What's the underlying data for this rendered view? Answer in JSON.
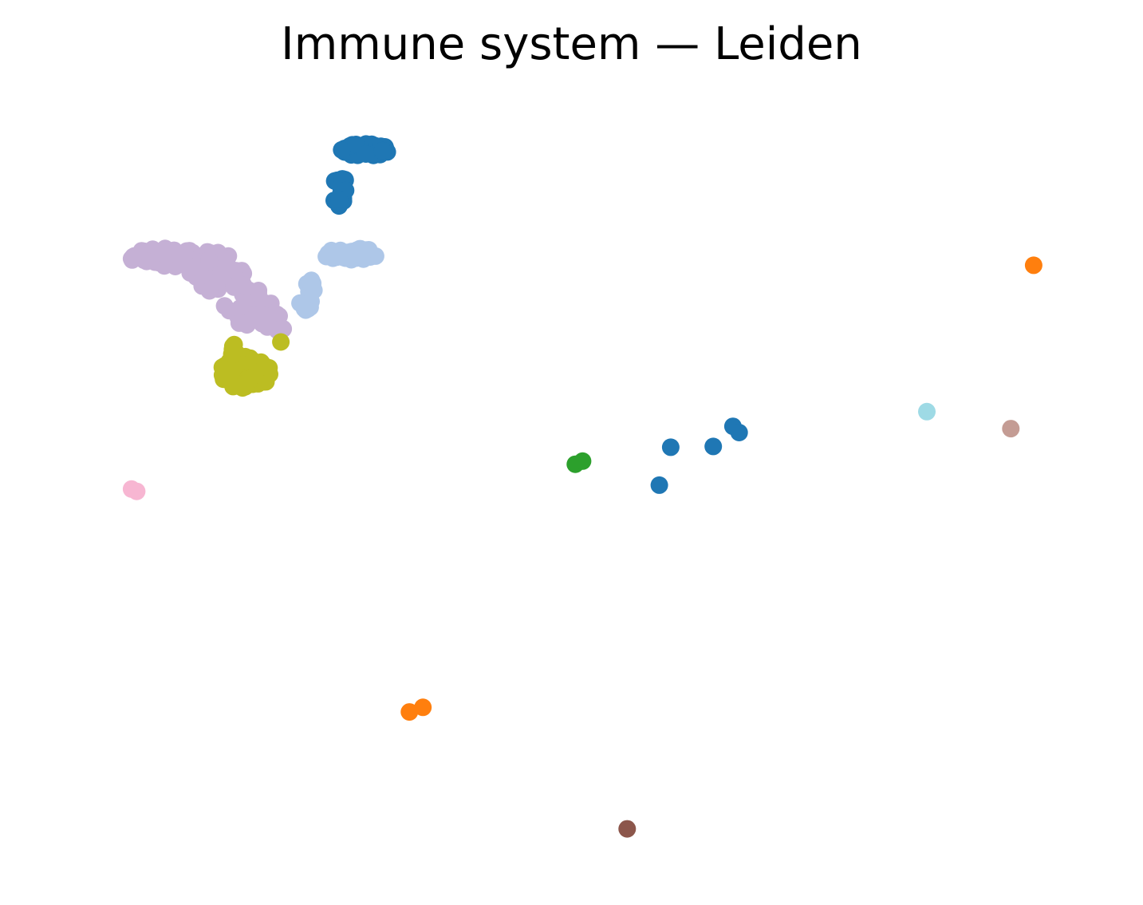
{
  "chart_data": {
    "type": "scatter",
    "title": "Immune system — Leiden",
    "xlabel": "",
    "ylabel": "",
    "axes_visible": false,
    "grid": false,
    "legend": "none",
    "xlim": [
      0,
      100
    ],
    "ylim": [
      0,
      100
    ],
    "point_radius": 11,
    "series": [
      {
        "color": "#c5b0d5",
        "clusters": [
          {
            "cx": 11.5,
            "cy": 79.1,
            "rx": 5.2,
            "ry": 1.2,
            "n": 55,
            "seed": 11
          },
          {
            "cx": 15.5,
            "cy": 77.2,
            "rx": 2.8,
            "ry": 2.6,
            "n": 45,
            "seed": 12
          },
          {
            "cx": 18.5,
            "cy": 73.0,
            "rx": 2.4,
            "ry": 2.8,
            "n": 35,
            "seed": 13
          },
          {
            "cx": 21.0,
            "cy": 70.9,
            "rx": 1.6,
            "ry": 1.4,
            "n": 18,
            "seed": 14
          }
        ]
      },
      {
        "color": "#aec7e8",
        "clusters": [
          {
            "cx": 28.5,
            "cy": 79.5,
            "rx": 2.6,
            "ry": 0.9,
            "n": 35,
            "seed": 21
          },
          {
            "cx": 24.2,
            "cy": 74.5,
            "rx": 0.8,
            "ry": 2.3,
            "n": 14,
            "seed": 22
          }
        ]
      },
      {
        "color": "#1f77b4",
        "clusters": [
          {
            "cx": 29.8,
            "cy": 93.0,
            "rx": 2.3,
            "ry": 0.8,
            "n": 45,
            "seed": 31
          },
          {
            "cx": 27.4,
            "cy": 87.6,
            "rx": 0.8,
            "ry": 2.0,
            "n": 20,
            "seed": 32
          }
        ],
        "points": [
          [
            63.4,
            54.7
          ],
          [
            59.3,
            54.6
          ],
          [
            65.3,
            57.3
          ],
          [
            65.9,
            56.5
          ],
          [
            58.2,
            49.7
          ]
        ]
      },
      {
        "color": "#bcbd22",
        "clusters": [
          {
            "cx": 18.3,
            "cy": 64.2,
            "rx": 2.4,
            "ry": 2.1,
            "n": 90,
            "seed": 41
          },
          {
            "cx": 17.2,
            "cy": 67.5,
            "rx": 0.4,
            "ry": 1.2,
            "n": 8,
            "seed": 42
          }
        ],
        "points": [
          [
            21.7,
            68.2
          ]
        ]
      },
      {
        "color": "#ff7f0e",
        "points": [
          [
            94.3,
            78.1
          ],
          [
            34.1,
            20.4
          ],
          [
            35.4,
            21.0
          ]
        ]
      },
      {
        "color": "#2ca02c",
        "points": [
          [
            50.1,
            52.4
          ],
          [
            50.8,
            52.8
          ]
        ]
      },
      {
        "color": "#f7b6d2",
        "points": [
          [
            7.3,
            49.2
          ],
          [
            7.8,
            48.9
          ]
        ]
      },
      {
        "color": "#9edae5",
        "points": [
          [
            84.0,
            59.2
          ]
        ]
      },
      {
        "color": "#c49c94",
        "points": [
          [
            92.1,
            57.0
          ]
        ]
      },
      {
        "color": "#8c564b",
        "points": [
          [
            55.1,
            5.3
          ]
        ]
      }
    ]
  }
}
